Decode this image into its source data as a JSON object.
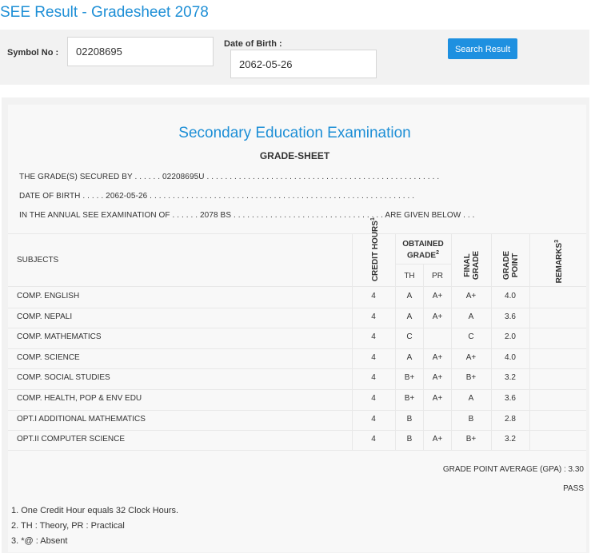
{
  "header": {
    "title": "SEE Result - Gradesheet 2078"
  },
  "search": {
    "symbol_label": "Symbol No :",
    "symbol_value": "02208695",
    "dob_label": "Date of Birth :",
    "dob_value": "2062-05-26",
    "button_label": "Search Result"
  },
  "sheet": {
    "exam_title": "Secondary Education Examination",
    "heading": "GRADE-SHEET",
    "line1": "THE GRADE(S) SECURED BY . . . . . . 02208695U . . . . . . . . . . . . . . . . . . . . . . . . . . . . . . . . . . . . . . . . . . . . . . . . . . .",
    "line2": "DATE OF BIRTH . . . . . 2062-05-26 . . . . . . . . . . . . . . . . . . . . . . . . . . . . . . . . . . . . . . . . . . . . . . . . . . . . . . . . . .",
    "line3": "IN THE ANNUAL SEE EXAMINATION OF . . . . . . 2078 BS . . . . . . . . . . . . . . . . . . . . . . . . . . . . . . . . . ARE GIVEN BELOW . . ."
  },
  "table": {
    "headers": {
      "subjects": "SUBJECTS",
      "credit_hours": "CREDIT HOURS",
      "credit_sup": "1",
      "obtained": "OBTAINED",
      "grade": "GRADE",
      "grade_sup": "2",
      "th": "TH",
      "pr": "PR",
      "final_grade": "FINAL GRADE",
      "grade_point": "GRADE POINT",
      "remarks": "REMARKS",
      "remarks_sup": "3"
    },
    "rows": [
      {
        "subject": "COMP. ENGLISH",
        "credit": "4",
        "th": "A",
        "pr": "A+",
        "final": "A+",
        "point": "4.0"
      },
      {
        "subject": "COMP. NEPALI",
        "credit": "4",
        "th": "A",
        "pr": "A+",
        "final": "A",
        "point": "3.6"
      },
      {
        "subject": "COMP. MATHEMATICS",
        "credit": "4",
        "th": "C",
        "pr": "",
        "final": "C",
        "point": "2.0"
      },
      {
        "subject": "COMP. SCIENCE",
        "credit": "4",
        "th": "A",
        "pr": "A+",
        "final": "A+",
        "point": "4.0"
      },
      {
        "subject": "COMP. SOCIAL STUDIES",
        "credit": "4",
        "th": "B+",
        "pr": "A+",
        "final": "B+",
        "point": "3.2"
      },
      {
        "subject": "COMP. HEALTH, POP & ENV EDU",
        "credit": "4",
        "th": "B+",
        "pr": "A+",
        "final": "A",
        "point": "3.6"
      },
      {
        "subject": "OPT.I ADDITIONAL MATHEMATICS",
        "credit": "4",
        "th": "B",
        "pr": "",
        "final": "B",
        "point": "2.8"
      },
      {
        "subject": "OPT.II COMPUTER SCIENCE",
        "credit": "4",
        "th": "B",
        "pr": "A+",
        "final": "B+",
        "point": "3.2"
      }
    ]
  },
  "summary": {
    "gpa": "GRADE POINT AVERAGE (GPA) : 3.30",
    "result": "PASS"
  },
  "notes": {
    "n1": "1. One Credit Hour equals 32 Clock Hours.",
    "n2": "2. TH : Theory, PR : Practical",
    "n3": "3. *@ : Absent"
  }
}
